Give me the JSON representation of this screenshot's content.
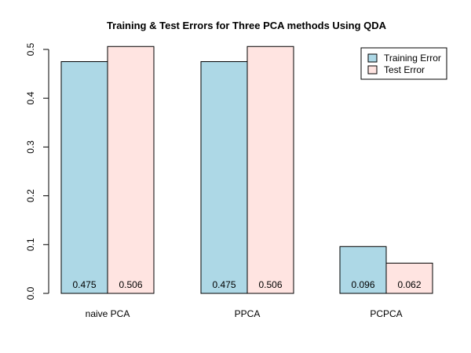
{
  "chart_data": {
    "type": "bar",
    "title": "Training & Test Errors for Three PCA methods Using QDA",
    "categories": [
      "naive PCA",
      "PPCA",
      "PCPCA"
    ],
    "series": [
      {
        "name": "Training Error",
        "values": [
          0.475,
          0.475,
          0.096
        ],
        "labels": [
          "0.475",
          "0.475",
          "0.096"
        ],
        "color": "#add8e6"
      },
      {
        "name": "Test Error",
        "values": [
          0.506,
          0.506,
          0.062
        ],
        "labels": [
          "0.506",
          "0.506",
          "0.062"
        ],
        "color": "#ffe4e1"
      }
    ],
    "ylim": [
      0,
      0.5
    ],
    "yticks": [
      "0.0",
      "0.1",
      "0.2",
      "0.3",
      "0.4",
      "0.5"
    ],
    "xlabel": "",
    "ylabel": "",
    "legend_position": "top-right",
    "grid": false
  }
}
